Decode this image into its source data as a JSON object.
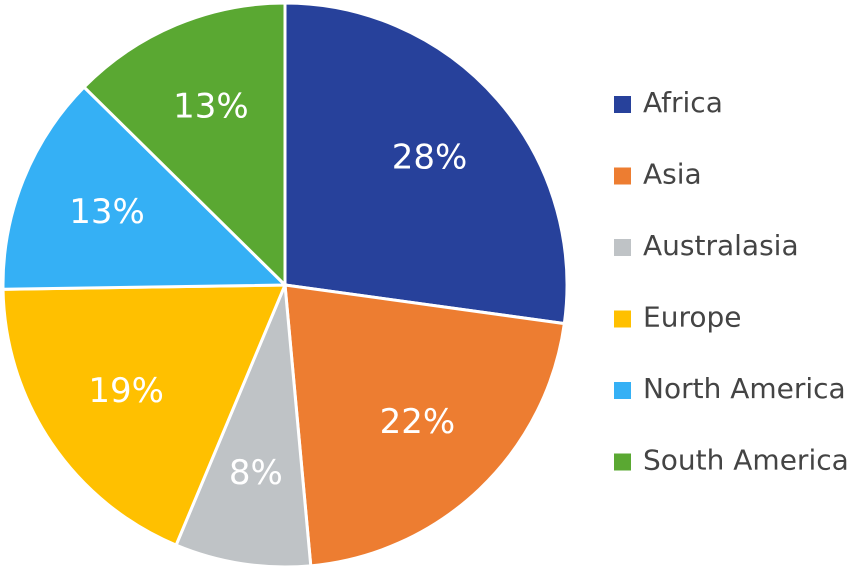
{
  "chart_data": {
    "type": "pie",
    "categories": [
      "Africa",
      "Asia",
      "Australasia",
      "Europe",
      "North America",
      "South America"
    ],
    "values": [
      28,
      22,
      8,
      19,
      13,
      13
    ],
    "value_labels": [
      "28%",
      "22%",
      "8%",
      "19%",
      "13%",
      "13%"
    ],
    "colors": [
      "#27419b",
      "#ed7d31",
      "#bfc3c6",
      "#ffc000",
      "#35b0f5",
      "#5aa832"
    ],
    "legend": "right"
  }
}
